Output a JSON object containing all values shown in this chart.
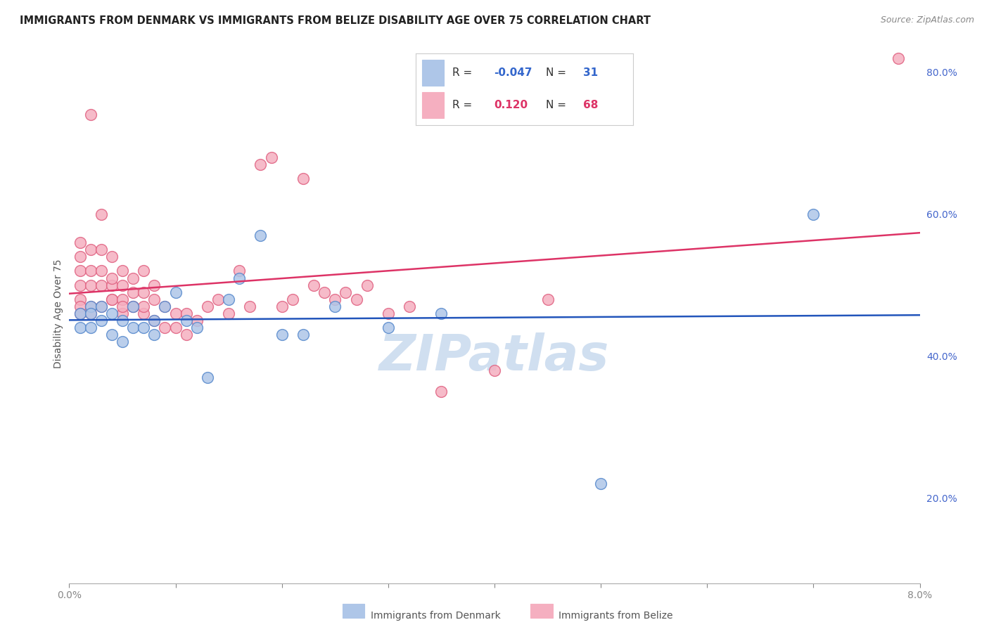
{
  "title": "IMMIGRANTS FROM DENMARK VS IMMIGRANTS FROM BELIZE DISABILITY AGE OVER 75 CORRELATION CHART",
  "source": "Source: ZipAtlas.com",
  "ylabel": "Disability Age Over 75",
  "xlim": [
    0.0,
    0.08
  ],
  "ylim": [
    0.08,
    0.84
  ],
  "x_tick_positions": [
    0.0,
    0.01,
    0.02,
    0.03,
    0.04,
    0.05,
    0.06,
    0.07,
    0.08
  ],
  "x_tick_labels": [
    "0.0%",
    "",
    "",
    "",
    "",
    "",
    "",
    "",
    "8.0%"
  ],
  "y_ticks_right": [
    0.2,
    0.4,
    0.6,
    0.8
  ],
  "y_tick_labels_right": [
    "20.0%",
    "40.0%",
    "60.0%",
    "80.0%"
  ],
  "denmark_color": "#aec6e8",
  "belize_color": "#f5afc0",
  "denmark_edge": "#5588cc",
  "belize_edge": "#e06080",
  "trend_denmark_color": "#2255bb",
  "trend_belize_color": "#dd3366",
  "legend_R_denmark": "-0.047",
  "legend_N_denmark": "31",
  "legend_R_belize": "0.120",
  "legend_N_belize": "68",
  "denmark_x": [
    0.001,
    0.001,
    0.002,
    0.002,
    0.002,
    0.003,
    0.003,
    0.004,
    0.004,
    0.005,
    0.005,
    0.006,
    0.006,
    0.007,
    0.008,
    0.008,
    0.009,
    0.01,
    0.011,
    0.012,
    0.013,
    0.015,
    0.016,
    0.018,
    0.02,
    0.022,
    0.025,
    0.03,
    0.035,
    0.05,
    0.07
  ],
  "denmark_y": [
    0.46,
    0.44,
    0.47,
    0.46,
    0.44,
    0.47,
    0.45,
    0.43,
    0.46,
    0.45,
    0.42,
    0.44,
    0.47,
    0.44,
    0.45,
    0.43,
    0.47,
    0.49,
    0.45,
    0.44,
    0.37,
    0.48,
    0.51,
    0.57,
    0.43,
    0.43,
    0.47,
    0.44,
    0.46,
    0.22,
    0.6
  ],
  "belize_x": [
    0.001,
    0.001,
    0.001,
    0.001,
    0.001,
    0.001,
    0.001,
    0.002,
    0.002,
    0.002,
    0.002,
    0.002,
    0.002,
    0.003,
    0.003,
    0.003,
    0.003,
    0.003,
    0.004,
    0.004,
    0.004,
    0.004,
    0.004,
    0.005,
    0.005,
    0.005,
    0.005,
    0.005,
    0.006,
    0.006,
    0.006,
    0.006,
    0.007,
    0.007,
    0.007,
    0.007,
    0.008,
    0.008,
    0.008,
    0.009,
    0.009,
    0.01,
    0.01,
    0.011,
    0.011,
    0.012,
    0.013,
    0.014,
    0.015,
    0.016,
    0.017,
    0.018,
    0.019,
    0.02,
    0.021,
    0.022,
    0.023,
    0.024,
    0.025,
    0.026,
    0.027,
    0.028,
    0.03,
    0.032,
    0.035,
    0.04,
    0.045,
    0.078
  ],
  "belize_y": [
    0.5,
    0.52,
    0.54,
    0.56,
    0.48,
    0.47,
    0.46,
    0.5,
    0.52,
    0.55,
    0.47,
    0.46,
    0.74,
    0.5,
    0.52,
    0.55,
    0.6,
    0.47,
    0.48,
    0.5,
    0.51,
    0.54,
    0.48,
    0.46,
    0.5,
    0.52,
    0.48,
    0.47,
    0.47,
    0.49,
    0.51,
    0.47,
    0.46,
    0.47,
    0.49,
    0.52,
    0.45,
    0.48,
    0.5,
    0.44,
    0.47,
    0.44,
    0.46,
    0.43,
    0.46,
    0.45,
    0.47,
    0.48,
    0.46,
    0.52,
    0.47,
    0.67,
    0.68,
    0.47,
    0.48,
    0.65,
    0.5,
    0.49,
    0.48,
    0.49,
    0.48,
    0.5,
    0.46,
    0.47,
    0.35,
    0.38,
    0.48,
    0.82
  ],
  "watermark": "ZIPatlas",
  "watermark_color": "#d0dff0",
  "title_fontsize": 10.5,
  "source_fontsize": 9,
  "tick_fontsize": 10,
  "ylabel_fontsize": 10
}
